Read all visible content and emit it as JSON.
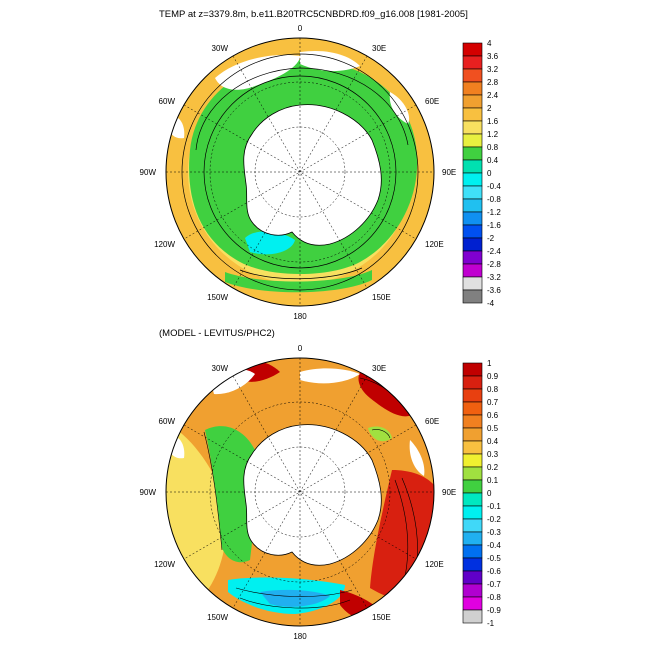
{
  "panels": [
    {
      "id": "top",
      "title": "TEMP at z=3379.8m, b.e11.B20TRC5CNBDRD.f09_g16.008 [1981-2005]",
      "long_labels": [
        "0",
        "30E",
        "60E",
        "90E",
        "120E",
        "150E",
        "180",
        "150W",
        "120W",
        "90W",
        "60W",
        "30W"
      ],
      "colorbar": {
        "labels": [
          "4",
          "3.6",
          "3.2",
          "2.8",
          "2.4",
          "2",
          "1.6",
          "1.2",
          "0.8",
          "0.4",
          "0",
          "-0.4",
          "-0.8",
          "-1.2",
          "-1.6",
          "-2",
          "-2.4",
          "-2.8",
          "-3.2",
          "-3.6",
          "-4"
        ],
        "colors": [
          "#d40000",
          "#e82020",
          "#f05020",
          "#f08020",
          "#f0a030",
          "#f8c040",
          "#f8e060",
          "#e8f040",
          "#40d040",
          "#00e0b0",
          "#00f0f0",
          "#40e0f8",
          "#20c0f0",
          "#1090f0",
          "#0050f0",
          "#0020d0",
          "#8000d0",
          "#c000d0",
          "#e0e0e0",
          "#808080"
        ]
      }
    },
    {
      "id": "bottom",
      "title": "(MODEL - LEVITUS/PHC2)",
      "long_labels": [
        "0",
        "30E",
        "60E",
        "90E",
        "120E",
        "150E",
        "180",
        "150W",
        "120W",
        "90W",
        "60W",
        "30W"
      ],
      "colorbar": {
        "labels": [
          "1",
          "0.9",
          "0.8",
          "0.7",
          "0.6",
          "0.5",
          "0.4",
          "0.3",
          "0.2",
          "0.1",
          "0",
          "-0.1",
          "-0.2",
          "-0.3",
          "-0.4",
          "-0.5",
          "-0.6",
          "-0.7",
          "-0.8",
          "-0.9",
          "-1"
        ],
        "colors": [
          "#c00000",
          "#d82010",
          "#e84010",
          "#f06010",
          "#f08020",
          "#f0a030",
          "#f8c040",
          "#f0f030",
          "#a0e040",
          "#40d040",
          "#00e8c0",
          "#00f0f0",
          "#40d8f8",
          "#20b0f0",
          "#0070f0",
          "#0030e0",
          "#6000c8",
          "#b000d0",
          "#e000e0",
          "#d0d0d0"
        ]
      }
    }
  ]
}
